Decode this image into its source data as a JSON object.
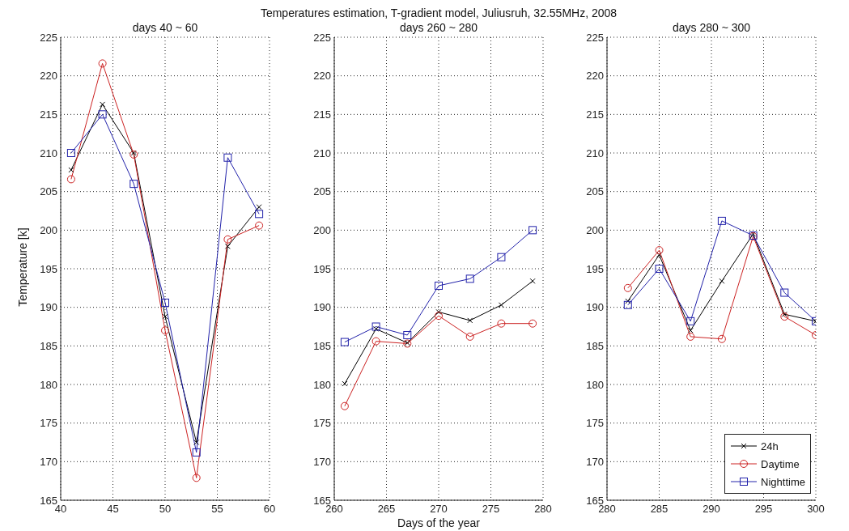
{
  "chart_data": [
    {
      "type": "line",
      "title": "days 40 ~ 60",
      "ylabel": "Temperature [k]",
      "x": [
        41,
        44,
        47,
        50,
        53,
        56,
        59
      ],
      "xlim": [
        40,
        60
      ],
      "xticks": [
        40,
        45,
        50,
        55,
        60
      ],
      "ylim": [
        165,
        225
      ],
      "yticks": [
        165,
        170,
        175,
        180,
        185,
        190,
        195,
        200,
        205,
        210,
        215,
        220,
        225
      ],
      "grid": true,
      "line_style": "solid",
      "series": [
        {
          "color": "#000000",
          "marker": "cross",
          "values": [
            207.8,
            216.3,
            210,
            188.8,
            172.5,
            197.9,
            203
          ]
        },
        {
          "color": "#cc2222",
          "marker": "circle",
          "values": [
            206.6,
            221.6,
            209.8,
            187,
            167.9,
            198.8,
            200.6
          ]
        },
        {
          "color": "#2222aa",
          "marker": "square",
          "values": [
            210,
            215,
            206,
            190.6,
            171.2,
            209.4,
            202.1
          ]
        }
      ]
    },
    {
      "type": "line",
      "title": "days 260 ~ 280",
      "xlabel": "Days of the year",
      "annotations": [
        "Temperatures estimation, T-gradient model, Juliusruh, 32.55MHz, 2008"
      ],
      "x": [
        261,
        264,
        267,
        270,
        273,
        276,
        279
      ],
      "xlim": [
        260,
        280
      ],
      "xticks": [
        260,
        265,
        270,
        275,
        280
      ],
      "ylim": [
        165,
        225
      ],
      "yticks": [
        165,
        170,
        175,
        180,
        185,
        190,
        195,
        200,
        205,
        210,
        215,
        220,
        225
      ],
      "grid": true,
      "line_style": "solid",
      "series": [
        {
          "color": "#000000",
          "marker": "cross",
          "values": [
            180.1,
            187.2,
            185.4,
            189.4,
            188.3,
            190.3,
            193.4
          ]
        },
        {
          "color": "#cc2222",
          "marker": "circle",
          "values": [
            177.2,
            185.6,
            185.3,
            188.9,
            186.2,
            187.9,
            187.9
          ]
        },
        {
          "color": "#2222aa",
          "marker": "square",
          "values": [
            185.5,
            187.5,
            186.4,
            192.8,
            193.7,
            196.5,
            200
          ]
        }
      ]
    },
    {
      "type": "line",
      "title": "days 280 ~ 300",
      "x": [
        282,
        285,
        288,
        291,
        294,
        297,
        300
      ],
      "xlim": [
        280,
        300
      ],
      "xticks": [
        280,
        285,
        290,
        295,
        300
      ],
      "ylim": [
        165,
        225
      ],
      "yticks": [
        165,
        170,
        175,
        180,
        185,
        190,
        195,
        200,
        205,
        210,
        215,
        220,
        225
      ],
      "grid": true,
      "line_style": "solid",
      "legend": "bottom right",
      "series": [
        {
          "name": "24h",
          "color": "#000000",
          "marker": "cross",
          "values": [
            190.8,
            196.8,
            187,
            193.4,
            199.5,
            189.1,
            188.2
          ]
        },
        {
          "name": "Daytime",
          "color": "#cc2222",
          "marker": "circle",
          "values": [
            192.5,
            197.4,
            186.2,
            185.9,
            199.2,
            188.8,
            186.4
          ]
        },
        {
          "name": "Nighttime",
          "color": "#2222aa",
          "marker": "square",
          "values": [
            190.3,
            195,
            188.2,
            201.2,
            199.3,
            191.9,
            188.2
          ]
        }
      ]
    }
  ]
}
